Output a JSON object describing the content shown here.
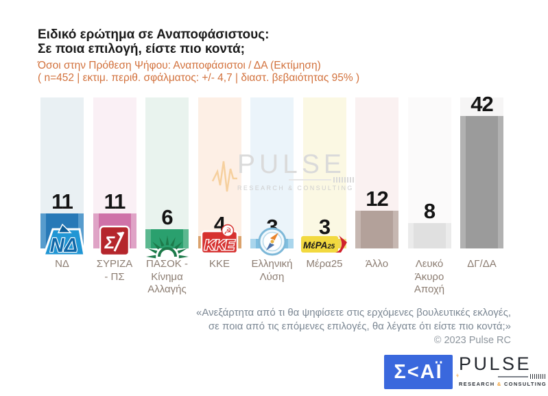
{
  "header": {
    "title_line1": "Ειδικό ερώτημα σε Αναποφάσιστους:",
    "title_line2": "Σε ποια επιλογή, είστε πιο κοντά;",
    "subtitle_line1": "Όσοι στην Πρόθεση Ψήφου: Αναποφάσιστοι / ΔΑ   (Εκτίμηση)",
    "subtitle_line2": "( n=452  |  εκτιμ. περιθ. σφάλματος: +/- 4,7  |  διαστ. βεβαιότητας 95% )",
    "subtitle_color": "#d2713c"
  },
  "chart_data": {
    "type": "bar",
    "title": "Ειδικό ερώτημα σε Αναποφάσιστους: Σε ποια επιλογή, είστε πιο κοντά;",
    "categories": [
      "ΝΔ",
      "ΣΥΡΙΖΑ - ΠΣ",
      "ΠΑΣΟΚ - Κίνημα Αλλαγής",
      "ΚΚΕ",
      "Ελληνική Λύση",
      "Μέρα25",
      "Άλλο",
      "Λευκό Άκυρο Αποχή",
      "ΔΓ/ΔΑ"
    ],
    "values": [
      11,
      11,
      6,
      4,
      3,
      3,
      12,
      8,
      42
    ],
    "xlabel": "",
    "ylabel": "",
    "ylim": [
      0,
      46
    ],
    "grid": false,
    "legend": false,
    "value_labels": true,
    "bars": [
      {
        "party": "ΝΔ",
        "label_lines": [
          "ΝΔ"
        ],
        "value": 11,
        "bar_color": "#2779b7",
        "bar_edge_color": "#579ccd",
        "strip_color": "#e9f0f3",
        "logo": "nd-logo"
      },
      {
        "party": "ΣΥΡΙΖΑ - ΠΣ",
        "label_lines": [
          "ΣΥΡΙΖΑ",
          "- ΠΣ"
        ],
        "value": 11,
        "bar_color": "#cf72a8",
        "bar_edge_color": "#dfa3c6",
        "strip_color": "#faf0f5",
        "logo": "syriza-logo"
      },
      {
        "party": "ΠΑΣΟΚ - Κίνημα Αλλαγής",
        "label_lines": [
          "ΠΑΣΟΚ -",
          "Κίνημα",
          "Αλλαγής"
        ],
        "value": 6,
        "bar_color": "#2aa06e",
        "bar_edge_color": "#5cb890",
        "strip_color": "#e9f3ee",
        "logo": "pasok-logo"
      },
      {
        "party": "ΚΚΕ",
        "label_lines": [
          "ΚΚΕ"
        ],
        "value": 4,
        "bar_color": "#cd8540",
        "bar_edge_color": "#dba26c",
        "strip_color": "#fdefe5",
        "logo": "kke-logo"
      },
      {
        "party": "Ελληνική Λύση",
        "label_lines": [
          "Ελληνική",
          "Λύση"
        ],
        "value": 3,
        "bar_color": "#80bfe0",
        "bar_edge_color": "#a9d5ec",
        "strip_color": "#ebf4fa",
        "logo": "elliniki-lysi-logo"
      },
      {
        "party": "Μέρα25",
        "label_lines": [
          "Μέρα25"
        ],
        "value": 3,
        "bar_color": "#eed74d",
        "bar_edge_color": "#f4e382",
        "strip_color": "#fbf8e3",
        "logo": "mera25-logo"
      },
      {
        "party": "Άλλο",
        "label_lines": [
          "Άλλο"
        ],
        "value": 12,
        "bar_color": "#b3a19a",
        "bar_edge_color": "#c6b7b1",
        "strip_color": "#faf1f1",
        "logo": null
      },
      {
        "party": "Λευκό Άκυρο Αποχή",
        "label_lines": [
          "Λευκό",
          "Άκυρο",
          "Αποχή"
        ],
        "value": 8,
        "bar_color": "#e0e0e0",
        "bar_edge_color": "#ebebeb",
        "strip_color": "#fbfafa",
        "logo": null
      },
      {
        "party": "ΔΓ/ΔΑ",
        "label_lines": [
          "ΔΓ/ΔΑ"
        ],
        "value": 42,
        "bar_color": "#9b9b9b",
        "bar_edge_color": "#b1b1b1",
        "strip_color": "#f6f5f5",
        "logo": null
      }
    ]
  },
  "watermark": {
    "text": "PULSE",
    "subtext": "RESEARCH & CONSULTING"
  },
  "footer": {
    "quote_line1": "«Ανεξάρτητα από τι θα ψηφίσετε στις ερχόμενες βουλευτικές εκλογές,",
    "quote_line2": "σε ποια από τις επόμενες επιλογές, θα λέγατε ότι είστε πιο κοντά;»",
    "copyright": "© 2023 Pulse RC"
  },
  "branding": {
    "skai_text": "Σ<ΑΪ",
    "skai_color": "#3a68dd",
    "pulse_text": "PULSE",
    "pulse_sub_left": "RESEARCH",
    "pulse_sub_amp": "&",
    "pulse_sub_right": "CONSULTING",
    "pulse_accent": "#f09c2e"
  }
}
